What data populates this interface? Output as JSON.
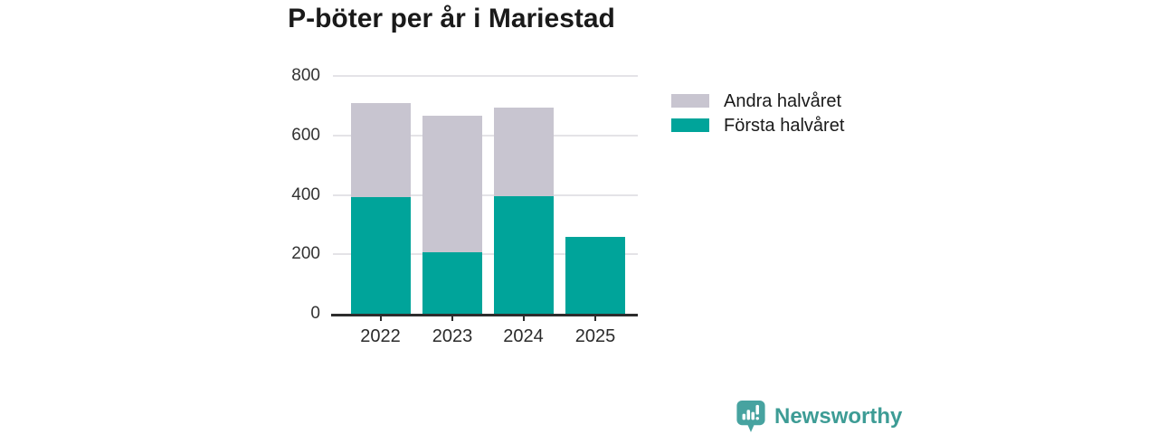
{
  "title": "P-böter per år i Mariestad",
  "chart_data": {
    "type": "bar",
    "stacked": true,
    "title": "P-böter per år i Mariestad",
    "categories": [
      "2022",
      "2023",
      "2024",
      "2025"
    ],
    "series": [
      {
        "name": "Första halvåret",
        "color": "#00a49a",
        "values": [
          393,
          207,
          395,
          260
        ]
      },
      {
        "name": "Andra halvåret",
        "color": "#c8c5d0",
        "values": [
          315,
          459,
          298,
          0
        ]
      }
    ],
    "totals": [
      708,
      666,
      693,
      260
    ],
    "xlabel": "",
    "ylabel": "",
    "ylim": [
      0,
      800
    ],
    "yticks": [
      0,
      200,
      400,
      600,
      800
    ],
    "grid": true,
    "legend_position": "right"
  },
  "legend": {
    "items": [
      {
        "label": "Andra halvåret",
        "color": "#c8c5d0"
      },
      {
        "label": "Första halvåret",
        "color": "#00a49a"
      }
    ]
  },
  "footer": {
    "brand": "Newsworthy",
    "brand_text_color": "#3d9c95",
    "brand_icon_color": "#47a3a0"
  }
}
